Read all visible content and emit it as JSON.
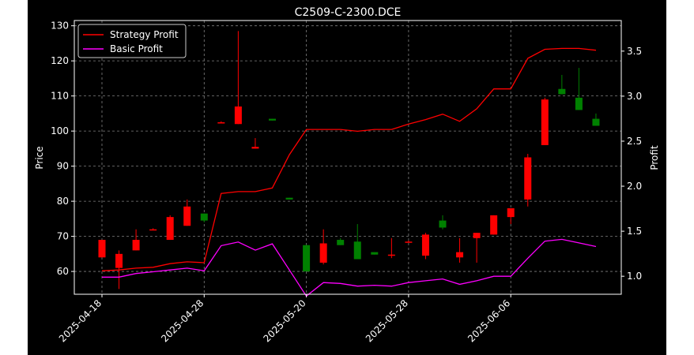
{
  "chart_data": {
    "type": "candlestick",
    "title": "C2509-C-2300.DCE",
    "ylabel_left": "Price",
    "ylabel_right": "Profit",
    "ylim_left": [
      53.5,
      131.5
    ],
    "ylim_right": [
      0.8,
      3.84
    ],
    "yticks_left": [
      "60",
      "70",
      "80",
      "90",
      "100",
      "110",
      "120",
      "130"
    ],
    "yticks_right": [
      "1.0",
      "1.5",
      "2.0",
      "2.5",
      "3.0",
      "3.5"
    ],
    "xticks": [
      "2025-04-18",
      "2025-04-28",
      "2025-05-20",
      "2025-05-28",
      "2025-06-06"
    ],
    "grid": true,
    "legend_position": "top-left",
    "colors": {
      "up": "#ff0000",
      "down": "#008000",
      "strategy": "#ff0000",
      "basic": "#ff00ff",
      "background": "#000000",
      "grid": "#808080"
    },
    "candles": [
      {
        "o": 64,
        "h": 69,
        "l": 64,
        "c": 69
      },
      {
        "o": 61,
        "h": 66,
        "l": 55,
        "c": 65
      },
      {
        "o": 66,
        "h": 72,
        "l": 66,
        "c": 69
      },
      {
        "o": 72,
        "h": 72.3,
        "l": 71.7,
        "c": 72
      },
      {
        "o": 69,
        "h": 76,
        "l": 69,
        "c": 75.5
      },
      {
        "o": 73,
        "h": 80.5,
        "l": 73,
        "c": 78.5
      },
      {
        "o": 76.5,
        "h": 76.5,
        "l": 74,
        "c": 74.5
      },
      {
        "o": 102.5,
        "h": 102.8,
        "l": 102.2,
        "c": 102.5
      },
      {
        "o": 102,
        "h": 128.5,
        "l": 102,
        "c": 107
      },
      {
        "o": 95,
        "h": 98,
        "l": 95,
        "c": 95.5
      },
      {
        "o": 103.5,
        "h": 103.5,
        "l": 103,
        "c": 103
      },
      {
        "o": 81,
        "h": 81,
        "l": 80.5,
        "c": 80.5
      },
      {
        "o": 67.5,
        "h": 67.5,
        "l": 60,
        "c": 60
      },
      {
        "o": 62.5,
        "h": 72,
        "l": 62,
        "c": 68
      },
      {
        "o": 69,
        "h": 69.5,
        "l": 67.5,
        "c": 67.5
      },
      {
        "o": 68.5,
        "h": 73.5,
        "l": 63.5,
        "c": 63.5
      },
      {
        "o": 65.5,
        "h": 65.5,
        "l": 64.8,
        "c": 64.8
      },
      {
        "o": 64.5,
        "h": 69.5,
        "l": 63.8,
        "c": 64.8
      },
      {
        "o": 68.5,
        "h": 68.8,
        "l": 68.2,
        "c": 68.5
      },
      {
        "o": 64.5,
        "h": 71,
        "l": 63.5,
        "c": 70.5
      },
      {
        "o": 74.5,
        "h": 76,
        "l": 72,
        "c": 72.5
      },
      {
        "o": 64,
        "h": 69.5,
        "l": 62.5,
        "c": 65.5
      },
      {
        "o": 69.5,
        "h": 71,
        "l": 62.5,
        "c": 71
      },
      {
        "o": 70.5,
        "h": 76,
        "l": 70.5,
        "c": 76
      },
      {
        "o": 75.5,
        "h": 78,
        "l": 73.5,
        "c": 78
      },
      {
        "o": 80.5,
        "h": 93.5,
        "l": 78.5,
        "c": 92.5
      },
      {
        "o": 96,
        "h": 109.5,
        "l": 96,
        "c": 109
      },
      {
        "o": 112,
        "h": 116,
        "l": 110.5,
        "c": 110.5
      },
      {
        "o": 109.5,
        "h": 118,
        "l": 106,
        "c": 106
      },
      {
        "o": 103.5,
        "h": 105,
        "l": 101.5,
        "c": 101.5
      }
    ],
    "series": [
      {
        "name": "Strategy Profit",
        "values": [
          1.06,
          1.07,
          1.09,
          1.1,
          1.14,
          1.16,
          1.15,
          1.92,
          1.94,
          1.94,
          1.98,
          2.35,
          2.63,
          2.63,
          2.63,
          2.61,
          2.63,
          2.63,
          2.69,
          2.74,
          2.8,
          2.72,
          2.86,
          3.08,
          3.08,
          3.42,
          3.52,
          3.53,
          3.53,
          3.51
        ]
      },
      {
        "name": "Basic Profit",
        "values": [
          0.99,
          0.99,
          1.03,
          1.05,
          1.07,
          1.09,
          1.06,
          1.34,
          1.38,
          1.29,
          1.36,
          1.07,
          0.78,
          0.93,
          0.92,
          0.89,
          0.9,
          0.89,
          0.93,
          0.95,
          0.97,
          0.91,
          0.95,
          1.0,
          1.0,
          1.2,
          1.39,
          1.41,
          1.37,
          1.33
        ]
      }
    ]
  }
}
